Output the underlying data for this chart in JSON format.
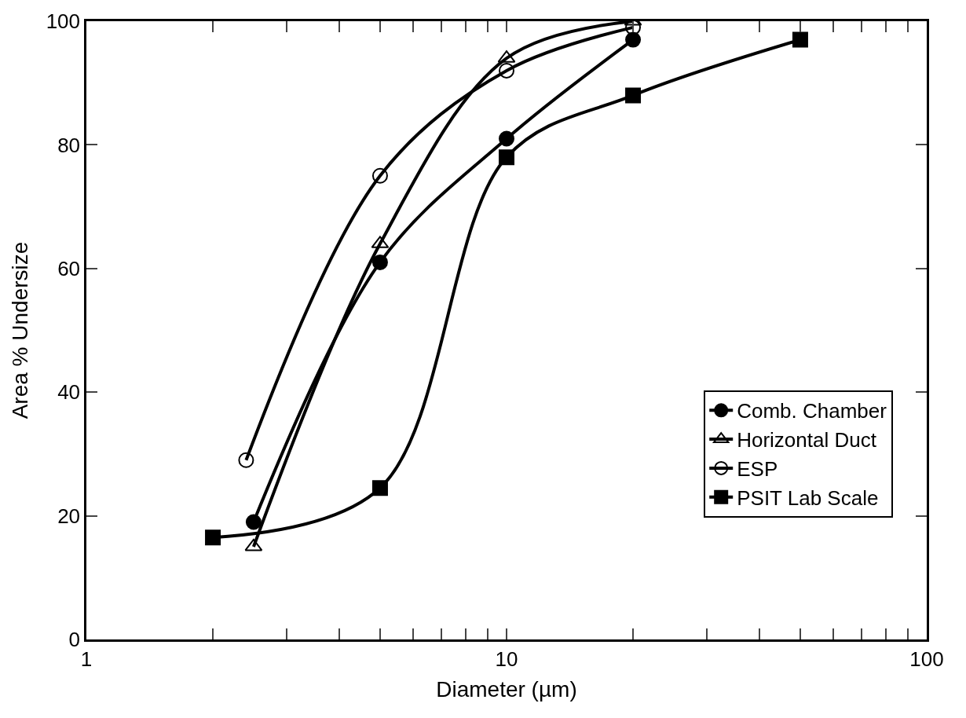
{
  "chart_data": {
    "type": "line",
    "xlabel": "Diameter (µm)",
    "ylabel": "Area % Undersize",
    "log": "x",
    "xlim": [
      1,
      100
    ],
    "ylim": [
      0,
      100
    ],
    "xticks": [
      1,
      {
        "value": 2,
        "label": null
      },
      {
        "value": 3,
        "label": null
      },
      {
        "value": 4,
        "label": null
      },
      {
        "value": 5,
        "label": null
      },
      {
        "value": 6,
        "label": null
      },
      {
        "value": 7,
        "label": null
      },
      {
        "value": 8,
        "label": null
      },
      {
        "value": 9,
        "label": null
      },
      10,
      {
        "value": 20,
        "label": null
      },
      {
        "value": 30,
        "label": null
      },
      {
        "value": 40,
        "label": null
      },
      {
        "value": 50,
        "label": null
      },
      {
        "value": 60,
        "label": null
      },
      {
        "value": 70,
        "label": null
      },
      {
        "value": 80,
        "label": null
      },
      {
        "value": 90,
        "label": null
      },
      100
    ],
    "yticks": [
      0,
      20,
      40,
      60,
      80,
      100
    ],
    "legend": "right",
    "series": [
      {
        "name": "Comb. Chamber",
        "color": "#000000",
        "marker": "circle",
        "x": [
          2.5,
          5,
          10,
          20
        ],
        "values": [
          19,
          61,
          81,
          97
        ]
      },
      {
        "name": "Horizontal Duct",
        "color": "#000000",
        "marker": "triangle-open",
        "x": [
          2.5,
          5,
          10,
          20
        ],
        "values": [
          15,
          64,
          94,
          100
        ]
      },
      {
        "name": "ESP",
        "color": "#000000",
        "marker": "circle-open",
        "x": [
          2.4,
          5,
          10,
          20
        ],
        "values": [
          29,
          75,
          92,
          99
        ]
      },
      {
        "name": "PSIT Lab Scale",
        "color": "#000000",
        "marker": "square",
        "x": [
          2,
          5,
          10,
          20,
          50
        ],
        "values": [
          16.5,
          24.5,
          78,
          88,
          97
        ]
      }
    ]
  }
}
